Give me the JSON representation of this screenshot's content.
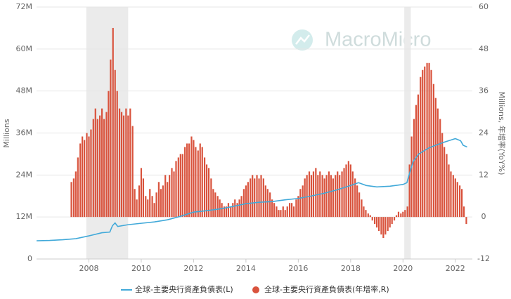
{
  "chart_data": {
    "type": "combo",
    "watermark": "MacroMicro",
    "y_label": "Millions",
    "y2_label": "Millions, 年增率(YoY%)",
    "xlim": [
      2006,
      2022.65
    ],
    "xticks": [
      2008,
      2010,
      2012,
      2014,
      2016,
      2018,
      2020,
      2022
    ],
    "ylim": [
      0,
      72
    ],
    "yticks": [
      0,
      {
        "value": 12,
        "label": "12M"
      },
      {
        "value": 24,
        "label": "24M"
      },
      {
        "value": 36,
        "label": "36M"
      },
      {
        "value": 48,
        "label": "48M"
      },
      {
        "value": 60,
        "label": "60M"
      },
      {
        "value": 72,
        "label": "72M"
      }
    ],
    "y2lim": [
      -12,
      60
    ],
    "y2ticks": [
      -12,
      0,
      12,
      24,
      36,
      48,
      60
    ],
    "grid": true,
    "legend": "bottom",
    "shading": [
      [
        2007.9,
        2009.5
      ],
      [
        2020.05,
        2020.3
      ]
    ],
    "shading_color": "#ebebeb",
    "series": [
      {
        "name": "全球-主要央行資產負債表(L)",
        "type": "line",
        "color": "#41a9d9",
        "x": [
          2006.0,
          2006.5,
          2007.0,
          2007.5,
          2008.0,
          2008.5,
          2008.8,
          2008.9,
          2009.0,
          2009.1,
          2009.5,
          2010.0,
          2010.5,
          2011.0,
          2011.5,
          2012.0,
          2012.5,
          2013.0,
          2013.5,
          2014.0,
          2014.5,
          2015.0,
          2015.5,
          2016.0,
          2016.5,
          2017.0,
          2017.5,
          2018.0,
          2018.3,
          2018.6,
          2019.0,
          2019.5,
          2020.0,
          2020.15,
          2020.25,
          2020.4,
          2020.6,
          2021.0,
          2021.5,
          2022.0,
          2022.2,
          2022.3,
          2022.45
        ],
        "values": [
          5.2,
          5.3,
          5.5,
          5.8,
          6.6,
          7.5,
          7.7,
          9.5,
          10.3,
          9.3,
          9.8,
          10.2,
          10.6,
          11.2,
          12.2,
          13.4,
          13.8,
          14.3,
          15.0,
          15.8,
          16.2,
          16.4,
          16.9,
          17.3,
          18.0,
          18.8,
          19.8,
          21.0,
          21.8,
          21.0,
          20.6,
          20.8,
          21.3,
          21.8,
          24.5,
          28,
          30,
          31.8,
          33.2,
          34.4,
          33.8,
          32.5,
          32.0
        ]
      },
      {
        "name": "全球-主要央行資產負債表(年增率,R)",
        "type": "bar",
        "axis": "y2",
        "color": "#d9533d",
        "x": [
          2007.33,
          2007.42,
          2007.5,
          2007.58,
          2007.67,
          2007.75,
          2007.83,
          2007.92,
          2008.0,
          2008.08,
          2008.17,
          2008.25,
          2008.33,
          2008.42,
          2008.5,
          2008.58,
          2008.67,
          2008.75,
          2008.83,
          2008.92,
          2009.0,
          2009.08,
          2009.17,
          2009.25,
          2009.33,
          2009.42,
          2009.5,
          2009.58,
          2009.67,
          2009.75,
          2009.83,
          2009.92,
          2010.0,
          2010.08,
          2010.17,
          2010.25,
          2010.33,
          2010.42,
          2010.5,
          2010.58,
          2010.67,
          2010.75,
          2010.83,
          2010.92,
          2011.0,
          2011.08,
          2011.17,
          2011.25,
          2011.33,
          2011.42,
          2011.5,
          2011.58,
          2011.67,
          2011.75,
          2011.83,
          2011.92,
          2012.0,
          2012.08,
          2012.17,
          2012.25,
          2012.33,
          2012.42,
          2012.5,
          2012.58,
          2012.67,
          2012.75,
          2012.83,
          2012.92,
          2013.0,
          2013.08,
          2013.17,
          2013.25,
          2013.33,
          2013.42,
          2013.5,
          2013.58,
          2013.67,
          2013.75,
          2013.83,
          2013.92,
          2014.0,
          2014.08,
          2014.17,
          2014.25,
          2014.33,
          2014.42,
          2014.5,
          2014.58,
          2014.67,
          2014.75,
          2014.83,
          2014.92,
          2015.0,
          2015.08,
          2015.17,
          2015.25,
          2015.33,
          2015.42,
          2015.5,
          2015.58,
          2015.67,
          2015.75,
          2015.83,
          2015.92,
          2016.0,
          2016.08,
          2016.17,
          2016.25,
          2016.33,
          2016.42,
          2016.5,
          2016.58,
          2016.67,
          2016.75,
          2016.83,
          2016.92,
          2017.0,
          2017.08,
          2017.17,
          2017.25,
          2017.33,
          2017.42,
          2017.5,
          2017.58,
          2017.67,
          2017.75,
          2017.83,
          2017.92,
          2018.0,
          2018.08,
          2018.17,
          2018.25,
          2018.33,
          2018.42,
          2018.5,
          2018.58,
          2018.67,
          2018.75,
          2018.83,
          2018.92,
          2019.0,
          2019.08,
          2019.17,
          2019.25,
          2019.33,
          2019.42,
          2019.5,
          2019.58,
          2019.67,
          2019.75,
          2019.83,
          2019.92,
          2020.0,
          2020.08,
          2020.17,
          2020.25,
          2020.33,
          2020.42,
          2020.5,
          2020.58,
          2020.67,
          2020.75,
          2020.83,
          2020.92,
          2021.0,
          2021.08,
          2021.17,
          2021.25,
          2021.33,
          2021.42,
          2021.5,
          2021.58,
          2021.67,
          2021.75,
          2021.83,
          2021.92,
          2022.0,
          2022.08,
          2022.17,
          2022.25,
          2022.33,
          2022.42
        ],
        "values": [
          10,
          11,
          13,
          17,
          21,
          23,
          22,
          24,
          23,
          25,
          28,
          31,
          28,
          29,
          31,
          28,
          30,
          36,
          45,
          54,
          42,
          36,
          31,
          30,
          29,
          31,
          29,
          31,
          26,
          8,
          5,
          9,
          14,
          11,
          6,
          5,
          8,
          6,
          4,
          7,
          10,
          8,
          9,
          12,
          10,
          12,
          14,
          13,
          16,
          17,
          18,
          18,
          20,
          21,
          21,
          23,
          22,
          20,
          19,
          21,
          20,
          17,
          15,
          14,
          11,
          8,
          7,
          6,
          5,
          4,
          3,
          3,
          4,
          3,
          4,
          5,
          4,
          5,
          6,
          8,
          9,
          10,
          11,
          12,
          11,
          12,
          11,
          12,
          11,
          9,
          8,
          7,
          5,
          4,
          3,
          2,
          2,
          3,
          2,
          3,
          4,
          4,
          3,
          5,
          6,
          8,
          9,
          11,
          12,
          13,
          12,
          13,
          14,
          12,
          13,
          12,
          11,
          12,
          13,
          12,
          11,
          12,
          13,
          12,
          13,
          14,
          15,
          16,
          15,
          13,
          11,
          9,
          7,
          5,
          3,
          2,
          1,
          0.5,
          -1,
          -2,
          -3,
          -4,
          -5,
          -6,
          -5,
          -4,
          -3,
          -2,
          -1,
          0.5,
          1.5,
          1,
          1.5,
          2,
          3,
          15,
          23,
          28,
          32,
          35,
          40,
          42,
          43,
          44,
          44,
          42,
          38,
          34,
          31,
          28,
          24,
          20,
          18,
          15,
          13,
          12,
          11,
          10,
          9,
          8,
          3,
          -2
        ]
      }
    ]
  }
}
